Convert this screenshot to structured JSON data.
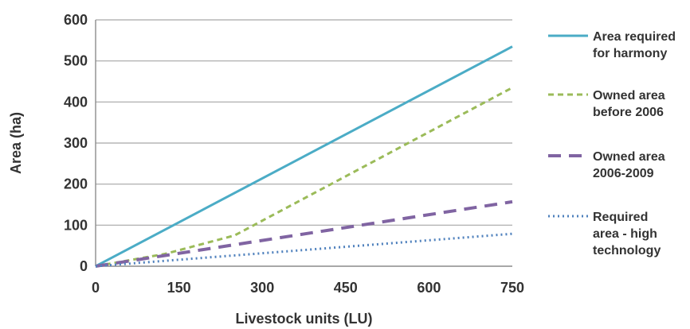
{
  "chart_data": {
    "type": "line",
    "xlabel": "Livestock units (LU)",
    "ylabel": "Area (ha)",
    "xlim": [
      0,
      750
    ],
    "ylim": [
      0,
      600
    ],
    "x_ticks": [
      0,
      150,
      300,
      450,
      600,
      750
    ],
    "y_ticks": [
      0,
      100,
      200,
      300,
      400,
      500,
      600
    ],
    "grid": "horizontal",
    "legend_position": "right",
    "series": [
      {
        "name": [
          "Area required",
          "for harmony"
        ],
        "color": "#4BACC6",
        "style": "solid",
        "points": [
          [
            0,
            0
          ],
          [
            750,
            535
          ]
        ]
      },
      {
        "name": [
          "Owned area",
          "before 2006"
        ],
        "color": "#9BBB59",
        "style": "short-dash",
        "points": [
          [
            0,
            0
          ],
          [
            125,
            30
          ],
          [
            250,
            75
          ],
          [
            750,
            435
          ]
        ]
      },
      {
        "name": [
          "Owned area",
          "2006-2009"
        ],
        "color": "#8064A2",
        "style": "long-dash",
        "points": [
          [
            0,
            0
          ],
          [
            750,
            157
          ]
        ]
      },
      {
        "name": [
          "Required",
          "area - high",
          "technology"
        ],
        "color": "#4F81BD",
        "style": "dot",
        "points": [
          [
            0,
            0
          ],
          [
            750,
            79
          ]
        ]
      }
    ]
  }
}
